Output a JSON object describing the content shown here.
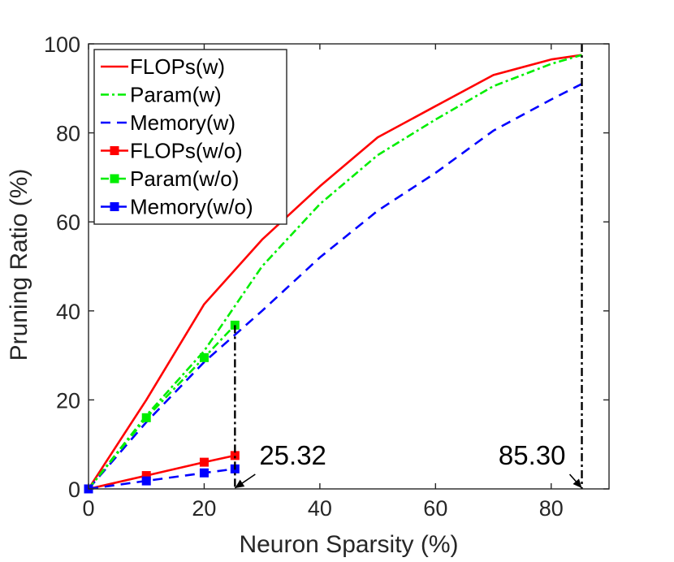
{
  "chart_data": {
    "type": "line",
    "title": "",
    "xlabel": "Neuron Sparsity (%)",
    "ylabel": "Pruning Ratio (%)",
    "xlim": [
      0,
      90
    ],
    "ylim": [
      0,
      100
    ],
    "xticks": [
      0,
      20,
      40,
      60,
      80
    ],
    "yticks": [
      0,
      20,
      40,
      60,
      80,
      100
    ],
    "grid": false,
    "legend_position": "top-left",
    "series": [
      {
        "name": "FLOPs(w)",
        "color": "#ff0000",
        "dash": "solid",
        "marker": "none",
        "x": [
          0,
          10,
          20,
          30,
          40,
          50,
          60,
          70,
          80,
          85.3
        ],
        "y": [
          0,
          20,
          41.5,
          56,
          68,
          79,
          86,
          93,
          96.5,
          97.5
        ]
      },
      {
        "name": "Param(w)",
        "color": "#00ee00",
        "dash": "dashdot",
        "marker": "none",
        "x": [
          0,
          10,
          20,
          30,
          40,
          50,
          60,
          70,
          80,
          85.3
        ],
        "y": [
          0,
          16.5,
          31,
          50,
          64,
          75,
          83,
          90.5,
          95.5,
          97.5
        ]
      },
      {
        "name": "Memory(w)",
        "color": "#0000ff",
        "dash": "dashed",
        "marker": "none",
        "x": [
          0,
          10,
          20,
          30,
          40,
          50,
          60,
          70,
          80,
          85.3
        ],
        "y": [
          0,
          15,
          28.5,
          40,
          52,
          62.5,
          71,
          80.5,
          87.5,
          91
        ]
      },
      {
        "name": "FLOPs(w/o)",
        "color": "#ff0000",
        "dash": "solid",
        "marker": "square",
        "x": [
          0,
          10,
          20,
          25.32
        ],
        "y": [
          0,
          3,
          6,
          7.5
        ]
      },
      {
        "name": "Param(w/o)",
        "color": "#00ee00",
        "dash": "dashdot",
        "marker": "square",
        "x": [
          0,
          10,
          20,
          25.32
        ],
        "y": [
          0,
          16,
          29.5,
          36.8
        ]
      },
      {
        "name": "Memory(w/o)",
        "color": "#0000ff",
        "dash": "dashed",
        "marker": "square",
        "x": [
          0,
          10,
          20,
          25.32
        ],
        "y": [
          0,
          1.8,
          3.6,
          4.5
        ]
      }
    ],
    "vlines": [
      {
        "x": 25.32,
        "y_top": 36.8,
        "color": "#000000",
        "dash": "dashdot"
      },
      {
        "x": 85.3,
        "y_top": 100,
        "color": "#000000",
        "dash": "dashdot"
      }
    ],
    "annotations": [
      {
        "text": "25.32",
        "target_x": 25.32,
        "target_y": 0
      },
      {
        "text": "85.30",
        "target_x": 85.3,
        "target_y": 0
      }
    ]
  }
}
